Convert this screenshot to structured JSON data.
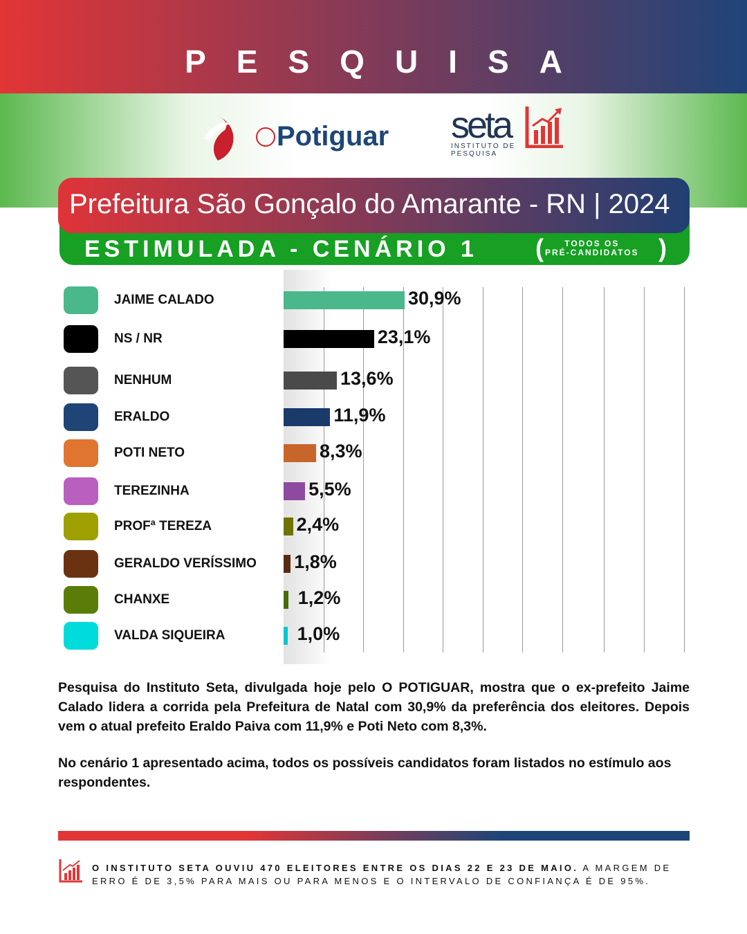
{
  "header": {
    "title": "PESQUISA",
    "brand1": "Potiguar",
    "brand1_prefix": "O",
    "brand2": "seta",
    "brand2_sub": "INSTITUTO DE PESQUISA"
  },
  "subtitle": "Prefeitura São Gonçalo do Amarante - RN | 2024",
  "scenario": {
    "label": "ESTIMULADA - CENÁRIO 1",
    "note_line1": "TODOS OS",
    "note_line2": "PRÉ-CANDIDATOS"
  },
  "chart_data": {
    "type": "bar",
    "orientation": "horizontal",
    "categories": [
      "JAIME CALADO",
      "NS / NR",
      "NENHUM",
      "ERALDO",
      "POTI NETO",
      "TEREZINHA",
      "PROFª TEREZA",
      "GERALDO VERÍSSIMO",
      "CHANXE",
      "VALDA SIQUEIRA"
    ],
    "values": [
      30.9,
      23.1,
      13.6,
      11.9,
      8.3,
      5.5,
      2.4,
      1.8,
      1.2,
      1.0
    ],
    "labels": [
      "30,9%",
      "23,1%",
      "13,6%",
      "11,9%",
      "8,3%",
      "5,5%",
      "2,4%",
      "1,8%",
      "1,2%",
      "1,0%"
    ],
    "colors": [
      "#4ab88a",
      "#000000",
      "#555555",
      "#1f4476",
      "#e07530",
      "#b95fc0",
      "#9ea002",
      "#6b3212",
      "#5a7d0a",
      "#00dcdc"
    ],
    "bar_colors": [
      "#4ab88a",
      "#000000",
      "#4a4a4a",
      "#1a3a6a",
      "#c8652a",
      "#8e4aa0",
      "#6f7300",
      "#5a2a10",
      "#4a6a08",
      "#00c8d0"
    ],
    "grid": true,
    "xlim": [
      0,
      100
    ]
  },
  "description": [
    "Pesquisa do Instituto Seta, divulgada hoje pelo O POTIGUAR, mostra que o ex-prefeito Jaime Calado lidera a corrida pela Prefeitura de Natal com 30,9% da preferência dos eleitores. Depois vem o atual prefeito Eraldo Paiva com 11,9% e Poti Neto com 8,3%.",
    "No cenário 1 apresentado acima, todos os possíveis candidatos foram listados no estímulo aos respondentes."
  ],
  "footer": {
    "bold": "O INSTITUTO SETA OUVIU 470 ELEITORES ENTRE OS DIAS 22 E 23 DE MAIO.",
    "rest": " A MARGEM DE ERRO É DE 3,5% PARA MAIS OU PARA MENOS E O INTERVALO DE CONFIANÇA É DE 95%."
  }
}
